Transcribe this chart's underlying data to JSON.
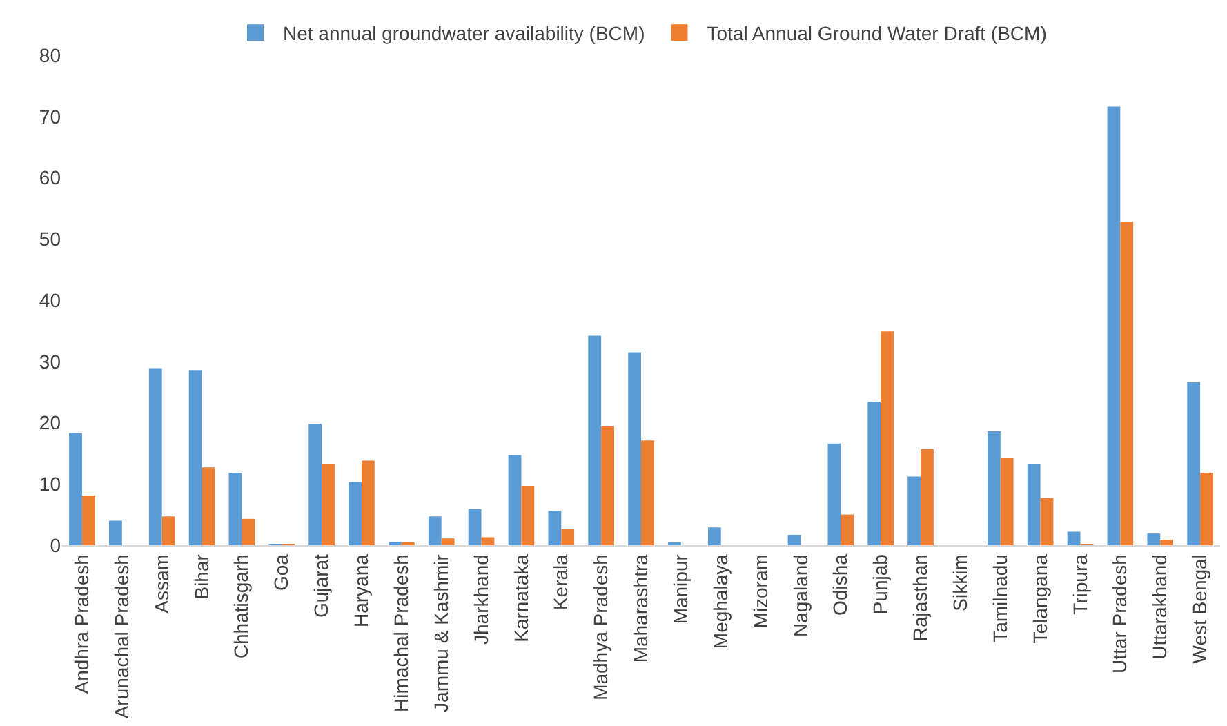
{
  "chart_data": {
    "type": "bar",
    "categories": [
      "Andhra Pradesh",
      "Arunachal Pradesh",
      "Assam",
      "Bihar",
      "Chhatisgarh",
      "Goa",
      "Gujarat",
      "Haryana",
      "Himachal Pradesh",
      "Jammu & Kashmir",
      "Jharkhand",
      "Karnataka",
      "Kerala",
      "Madhya Pradesh",
      "Maharashtra",
      "Manipur",
      "Meghalaya",
      "Mizoram",
      "Nagaland",
      "Odisha",
      "Punjab",
      "Rajasthan",
      "Sikkim",
      "Tamilnadu",
      "Telangana",
      "Tripura",
      "Uttar Pradesh",
      "Uttarakhand",
      "West Bengal"
    ],
    "series": [
      {
        "name": "Net annual groundwater availability (BCM)",
        "color": "#5b9bd5",
        "values": [
          18.3,
          4.0,
          28.9,
          28.6,
          11.8,
          0.2,
          19.8,
          10.3,
          0.5,
          4.7,
          5.9,
          14.7,
          5.6,
          34.2,
          31.5,
          0.4,
          2.9,
          0,
          1.7,
          16.6,
          23.4,
          11.2,
          0,
          18.6,
          13.3,
          2.2,
          71.6,
          1.9,
          26.6
        ]
      },
      {
        "name": "Total Annual Ground Water Draft (BCM)",
        "color": "#ed7d31",
        "values": [
          8.1,
          0,
          4.7,
          12.7,
          4.3,
          0.1,
          13.3,
          13.8,
          0.3,
          1.1,
          1.3,
          9.7,
          2.6,
          19.4,
          17.1,
          0,
          0,
          0,
          0,
          5.0,
          34.9,
          15.7,
          0,
          14.2,
          7.7,
          0.1,
          52.8,
          0.9,
          11.8
        ]
      }
    ],
    "ylim": [
      0,
      80
    ],
    "yticks": [
      0,
      10,
      20,
      30,
      40,
      50,
      60,
      70,
      80
    ],
    "grid": false,
    "legend": "top"
  }
}
